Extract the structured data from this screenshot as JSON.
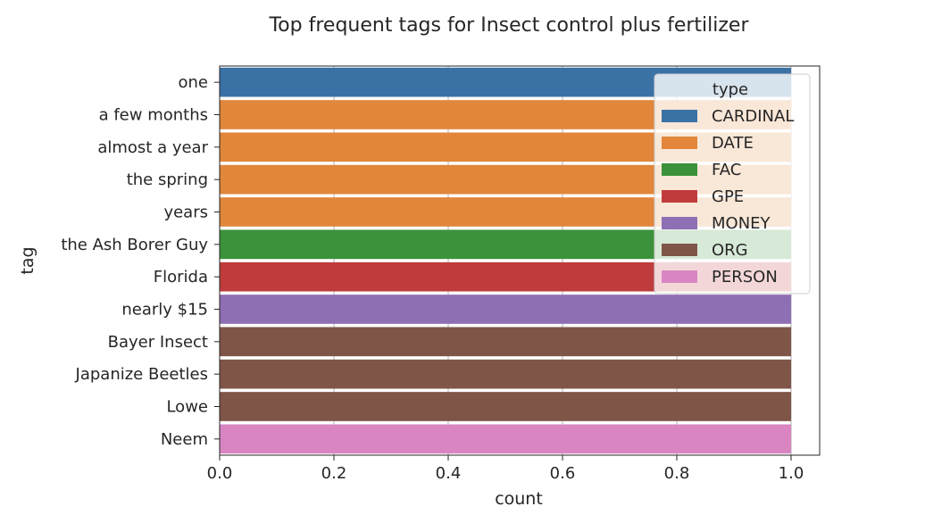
{
  "chart_data": {
    "type": "bar",
    "orientation": "horizontal",
    "title": "Top frequent tags for Insect control plus fertilizer",
    "xlabel": "count",
    "ylabel": "tag",
    "xlim": [
      0,
      1.05
    ],
    "xticks": [
      "0.0",
      "0.2",
      "0.4",
      "0.6",
      "0.8",
      "1.0"
    ],
    "grid": true,
    "legend": {
      "title": "type",
      "placement": "top-right"
    },
    "categories": [
      "one",
      "a few months",
      "almost a year",
      "the spring",
      "years",
      "the Ash Borer Guy",
      "Florida",
      "nearly $15",
      "Bayer Insect",
      "Japanize Beetles",
      "Lowe",
      "Neem"
    ],
    "values": [
      1,
      1,
      1,
      1,
      1,
      1,
      1,
      1,
      1,
      1,
      1,
      1
    ],
    "types": [
      "CARDINAL",
      "DATE",
      "DATE",
      "DATE",
      "DATE",
      "FAC",
      "GPE",
      "MONEY",
      "ORG",
      "ORG",
      "ORG",
      "PERSON"
    ],
    "series": [
      {
        "name": "CARDINAL",
        "color": "#3a72a6"
      },
      {
        "name": "DATE",
        "color": "#e1863b"
      },
      {
        "name": "FAC",
        "color": "#3b923b"
      },
      {
        "name": "GPE",
        "color": "#c03b3c"
      },
      {
        "name": "MONEY",
        "color": "#8f6fb4"
      },
      {
        "name": "ORG",
        "color": "#7f5548"
      },
      {
        "name": "PERSON",
        "color": "#d885c2"
      }
    ]
  }
}
